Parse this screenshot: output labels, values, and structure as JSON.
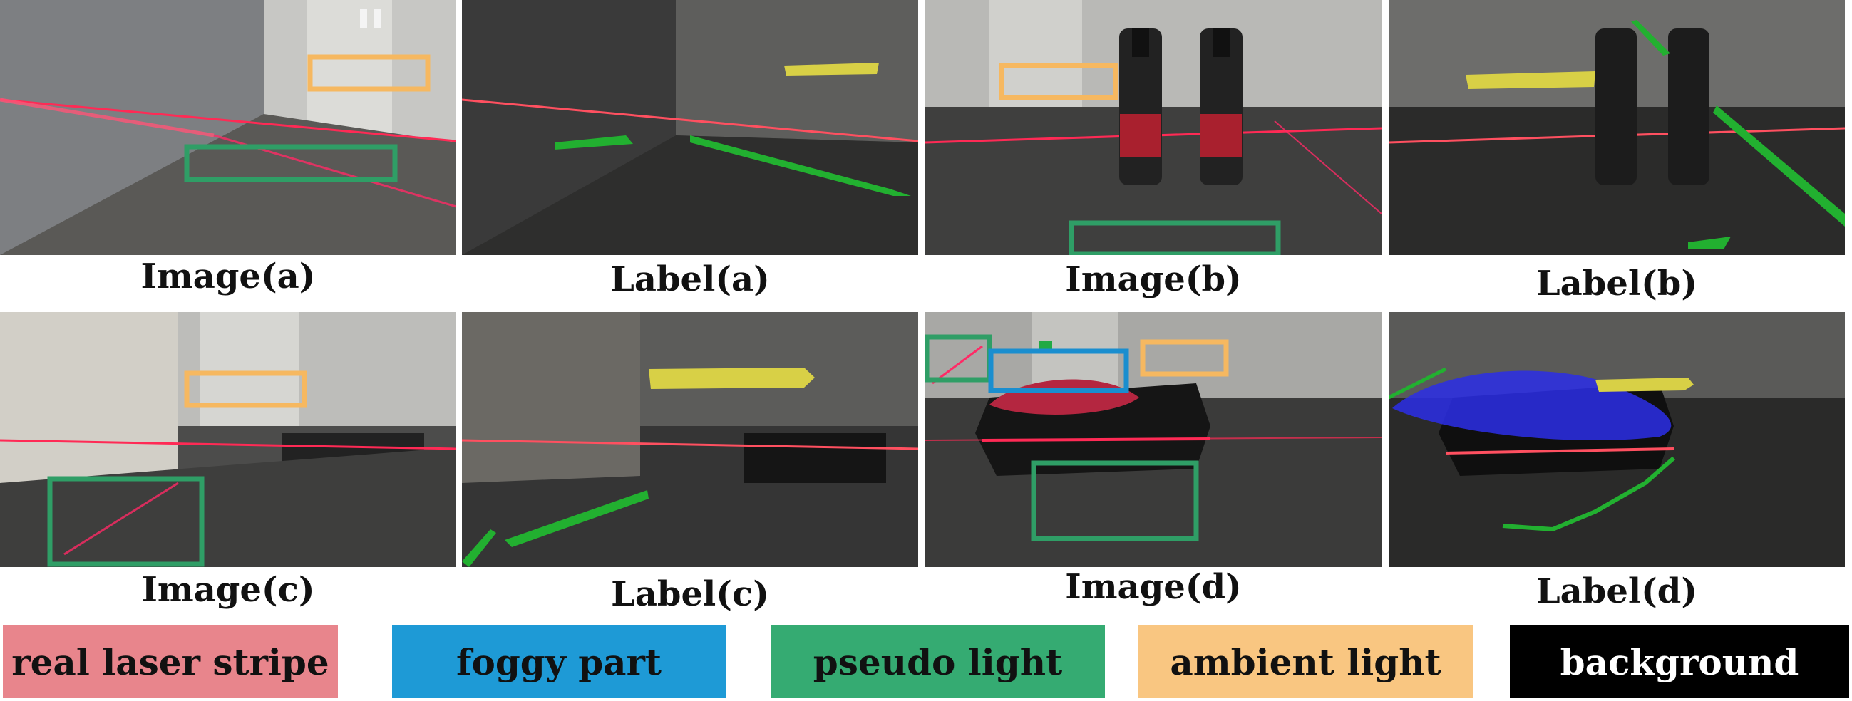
{
  "figure": {
    "rows": [
      {
        "image": {
          "caption": "Image(a)"
        },
        "label": {
          "caption": "Label(a)"
        }
      },
      {
        "image": {
          "caption": "Image(b)"
        },
        "label": {
          "caption": "Label(b)"
        }
      },
      {
        "image": {
          "caption": "Image(c)"
        },
        "label": {
          "caption": "Label(c)"
        }
      },
      {
        "image": {
          "caption": "Image(d)"
        },
        "label": {
          "caption": "Label(d)"
        }
      }
    ],
    "legend": [
      {
        "label": "real laser stripe",
        "color": "#e8858c",
        "text_color": "#111111"
      },
      {
        "label": "foggy part",
        "color": "#1e9ad6",
        "text_color": "#111111"
      },
      {
        "label": "pseudo light",
        "color": "#35ab72",
        "text_color": "#111111"
      },
      {
        "label": "ambient light",
        "color": "#f9c681",
        "text_color": "#111111"
      },
      {
        "label": "background",
        "color": "#000000",
        "text_color": "#ffffff"
      }
    ],
    "colors": {
      "laser": "#ff2a55",
      "ambient_box": "#f6b860",
      "pseudo_box": "#2f9e66",
      "foggy_box": "#1a8ecf",
      "mask_ambient": "#d8d046",
      "mask_pseudo": "#22b030",
      "mask_foggy": "#2b2ee8"
    }
  }
}
